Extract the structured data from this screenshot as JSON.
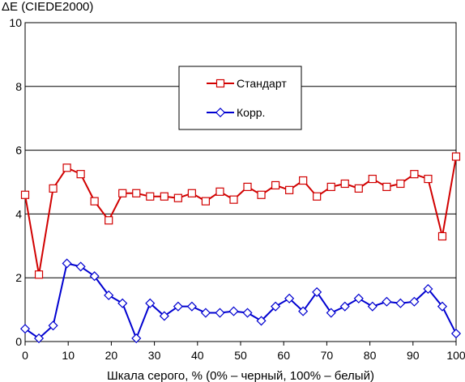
{
  "chart_data": {
    "type": "line",
    "ylabel": "ΔE (CIEDE2000)",
    "xlabel": "Шкала серого, % (0% – черный, 100% – белый)",
    "xlim": [
      0,
      100
    ],
    "ylim": [
      0,
      10
    ],
    "xticks": [
      "0",
      "10",
      "20",
      "30",
      "40",
      "50",
      "60",
      "70",
      "80",
      "90",
      "100"
    ],
    "yticks": [
      "0",
      "2",
      "4",
      "6",
      "8",
      "10"
    ],
    "grid": "horizontal",
    "legend": "inside-top-center",
    "x": [
      0,
      3.2,
      6.5,
      9.7,
      12.9,
      16.1,
      19.4,
      22.6,
      25.8,
      29.0,
      32.3,
      35.5,
      38.7,
      41.9,
      45.2,
      48.4,
      51.6,
      54.8,
      58.1,
      61.3,
      64.5,
      67.7,
      71.0,
      74.2,
      77.4,
      80.6,
      83.9,
      87.1,
      90.3,
      93.5,
      96.8,
      100
    ],
    "series": [
      {
        "name": "Стандарт",
        "color": "#d10000",
        "marker": "square",
        "values": [
          4.6,
          2.1,
          4.8,
          5.45,
          5.25,
          4.4,
          3.8,
          4.65,
          4.65,
          4.55,
          4.55,
          4.5,
          4.65,
          4.4,
          4.7,
          4.45,
          4.85,
          4.6,
          4.9,
          4.75,
          5.05,
          4.55,
          4.85,
          4.95,
          4.8,
          5.1,
          4.85,
          4.95,
          5.25,
          5.1,
          3.3,
          5.8
        ]
      },
      {
        "name": "Корр.",
        "color": "#0000d0",
        "marker": "diamond",
        "values": [
          0.4,
          0.1,
          0.5,
          2.45,
          2.35,
          2.05,
          1.45,
          1.2,
          0.1,
          1.2,
          0.8,
          1.1,
          1.1,
          0.9,
          0.9,
          0.95,
          0.9,
          0.65,
          1.1,
          1.35,
          0.95,
          1.55,
          0.9,
          1.1,
          1.35,
          1.1,
          1.25,
          1.2,
          1.25,
          1.65,
          1.1,
          0.25
        ]
      }
    ]
  }
}
